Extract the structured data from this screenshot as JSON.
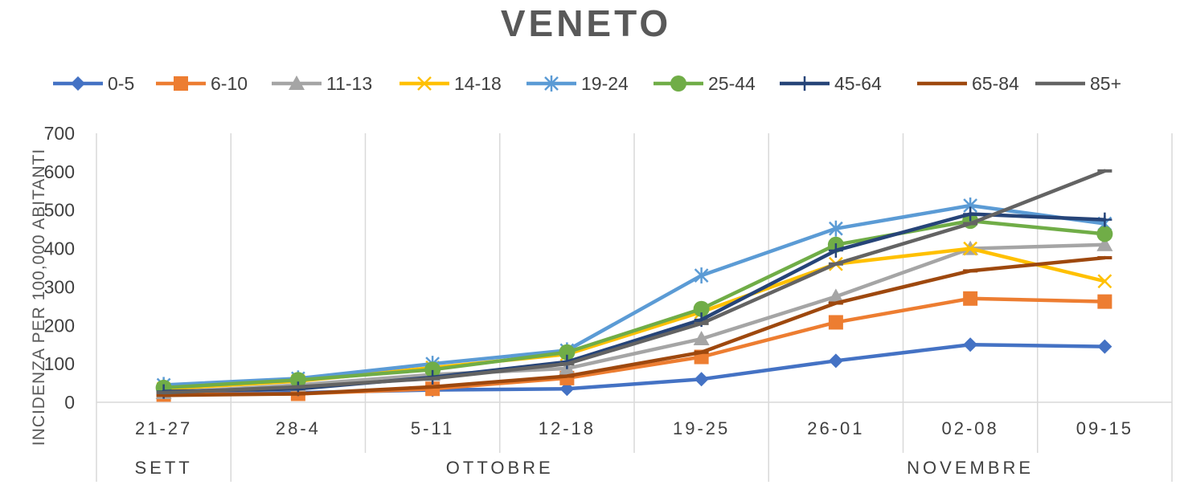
{
  "chart_data": {
    "type": "line",
    "title": "VENETO",
    "ylabel": "INCIDENZA PER 100,000 ABITANTI",
    "ylim": [
      0,
      700
    ],
    "yticks": [
      0,
      100,
      200,
      300,
      400,
      500,
      600,
      700
    ],
    "categories": [
      "21-27",
      "28-4",
      "5-11",
      "12-18",
      "19-25",
      "26-01",
      "02-08",
      "09-15"
    ],
    "groups": [
      {
        "label": "SETT",
        "span": 1
      },
      {
        "label": "OTTOBRE",
        "span": 4
      },
      {
        "label": "NOVEMBRE",
        "span": 3
      }
    ],
    "grid": true,
    "legend_position": "top",
    "series": [
      {
        "name": "0-5",
        "color": "#4472C4",
        "marker": "diamond",
        "values": [
          20,
          25,
          32,
          35,
          60,
          108,
          150,
          145
        ]
      },
      {
        "name": "6-10",
        "color": "#ED7D31",
        "marker": "square",
        "values": [
          20,
          22,
          35,
          63,
          118,
          208,
          270,
          262
        ]
      },
      {
        "name": "11-13",
        "color": "#A5A5A5",
        "marker": "triangle",
        "values": [
          25,
          45,
          72,
          88,
          165,
          275,
          400,
          410
        ]
      },
      {
        "name": "14-18",
        "color": "#FFC000",
        "marker": "x",
        "values": [
          35,
          55,
          90,
          125,
          235,
          360,
          400,
          315
        ]
      },
      {
        "name": "19-24",
        "color": "#5B9BD5",
        "marker": "star",
        "values": [
          45,
          62,
          100,
          135,
          330,
          452,
          512,
          465
        ]
      },
      {
        "name": "25-44",
        "color": "#70AD47",
        "marker": "circle",
        "values": [
          38,
          58,
          85,
          130,
          243,
          410,
          472,
          438
        ]
      },
      {
        "name": "45-64",
        "color": "#264478",
        "marker": "plus",
        "values": [
          28,
          35,
          65,
          105,
          215,
          395,
          490,
          475
        ]
      },
      {
        "name": "65-84",
        "color": "#9E480E",
        "marker": "dash",
        "values": [
          18,
          22,
          40,
          68,
          130,
          258,
          342,
          376
        ]
      },
      {
        "name": "85+",
        "color": "#636363",
        "marker": "dash",
        "values": [
          25,
          40,
          62,
          100,
          205,
          360,
          465,
          602
        ]
      }
    ]
  }
}
